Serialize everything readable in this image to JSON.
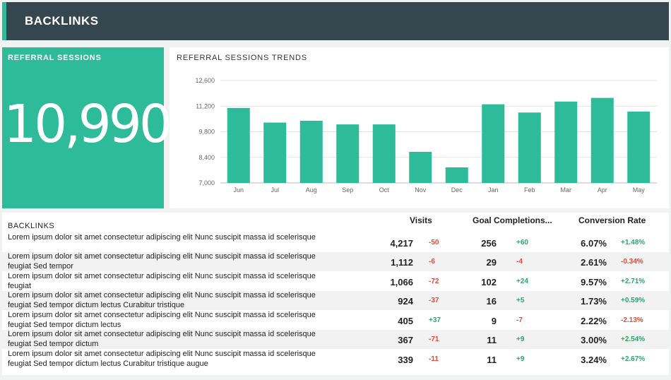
{
  "header": {
    "title": "BACKLINKS"
  },
  "kpi": {
    "label": "REFERRAL SESSIONS",
    "value": "10,990"
  },
  "chart": {
    "title": "REFERRAL SESSIONS TRENDS"
  },
  "chart_data": {
    "type": "bar",
    "title": "REFERRAL SESSIONS TRENDS",
    "categories": [
      "Jun",
      "Jul",
      "Aug",
      "Sep",
      "Oct",
      "Nov",
      "Dec",
      "Jan",
      "Feb",
      "Mar",
      "Apr",
      "May"
    ],
    "values": [
      11100,
      10300,
      10400,
      10200,
      10200,
      8700,
      7850,
      11300,
      10850,
      11450,
      11650,
      10900
    ],
    "yticks": [
      "12,600",
      "11,200",
      "9,800",
      "8,400",
      "7,000"
    ],
    "ytick_values": [
      12600,
      11200,
      9800,
      8400,
      7000
    ],
    "ylim": [
      7000,
      12600
    ],
    "xlabel": "",
    "ylabel": "",
    "color": "#2dbb9a"
  },
  "table": {
    "title": "BACKLINKS",
    "headers": {
      "visits": "Visits",
      "goals": "Goal Completions...",
      "conversion": "Conversion Rate"
    },
    "rows": [
      {
        "desc": "Lorem ipsum dolor sit amet consectetur adipiscing elit Nunc suscipit massa id scelerisque",
        "visits": "4,217",
        "visits_chg": "-50",
        "goals": "256",
        "goals_chg": "+60",
        "conv": "6.07%",
        "conv_chg": "+1.48%"
      },
      {
        "desc": "Lorem ipsum dolor sit amet consectetur adipiscing elit Nunc suscipit massa id scelerisque feugiat Sed tempor",
        "visits": "1,112",
        "visits_chg": "-6",
        "goals": "29",
        "goals_chg": "-4",
        "conv": "2.61%",
        "conv_chg": "-0.34%"
      },
      {
        "desc": "Lorem ipsum dolor sit amet consectetur adipiscing elit Nunc suscipit massa id scelerisque feugiat",
        "visits": "1,066",
        "visits_chg": "-72",
        "goals": "102",
        "goals_chg": "+24",
        "conv": "9.57%",
        "conv_chg": "+2.71%"
      },
      {
        "desc": "Lorem ipsum dolor sit amet consectetur adipiscing elit Nunc suscipit massa id scelerisque feugiat Sed tempor dictum lectus Curabitur tristique",
        "visits": "924",
        "visits_chg": "-37",
        "goals": "16",
        "goals_chg": "+5",
        "conv": "1.73%",
        "conv_chg": "+0.59%"
      },
      {
        "desc": "Lorem ipsum dolor sit amet consectetur adipiscing elit Nunc suscipit massa id scelerisque feugiat Sed tempor dictum lectus",
        "visits": "405",
        "visits_chg": "+37",
        "goals": "9",
        "goals_chg": "-7",
        "conv": "2.22%",
        "conv_chg": "-2.13%"
      },
      {
        "desc": "Lorem ipsum dolor sit amet consectetur adipiscing elit Nunc suscipit massa id scelerisque feugiat Sed tempor dictum",
        "visits": "367",
        "visits_chg": "-71",
        "goals": "11",
        "goals_chg": "+9",
        "conv": "3.00%",
        "conv_chg": "+2.54%"
      },
      {
        "desc": "Lorem ipsum dolor sit amet consectetur adipiscing elit Nunc suscipit massa id scelerisque feugiat Sed tempor dictum lectus Curabitur tristique augue",
        "visits": "339",
        "visits_chg": "-11",
        "goals": "11",
        "goals_chg": "+9",
        "conv": "3.24%",
        "conv_chg": "+2.67%"
      }
    ]
  }
}
